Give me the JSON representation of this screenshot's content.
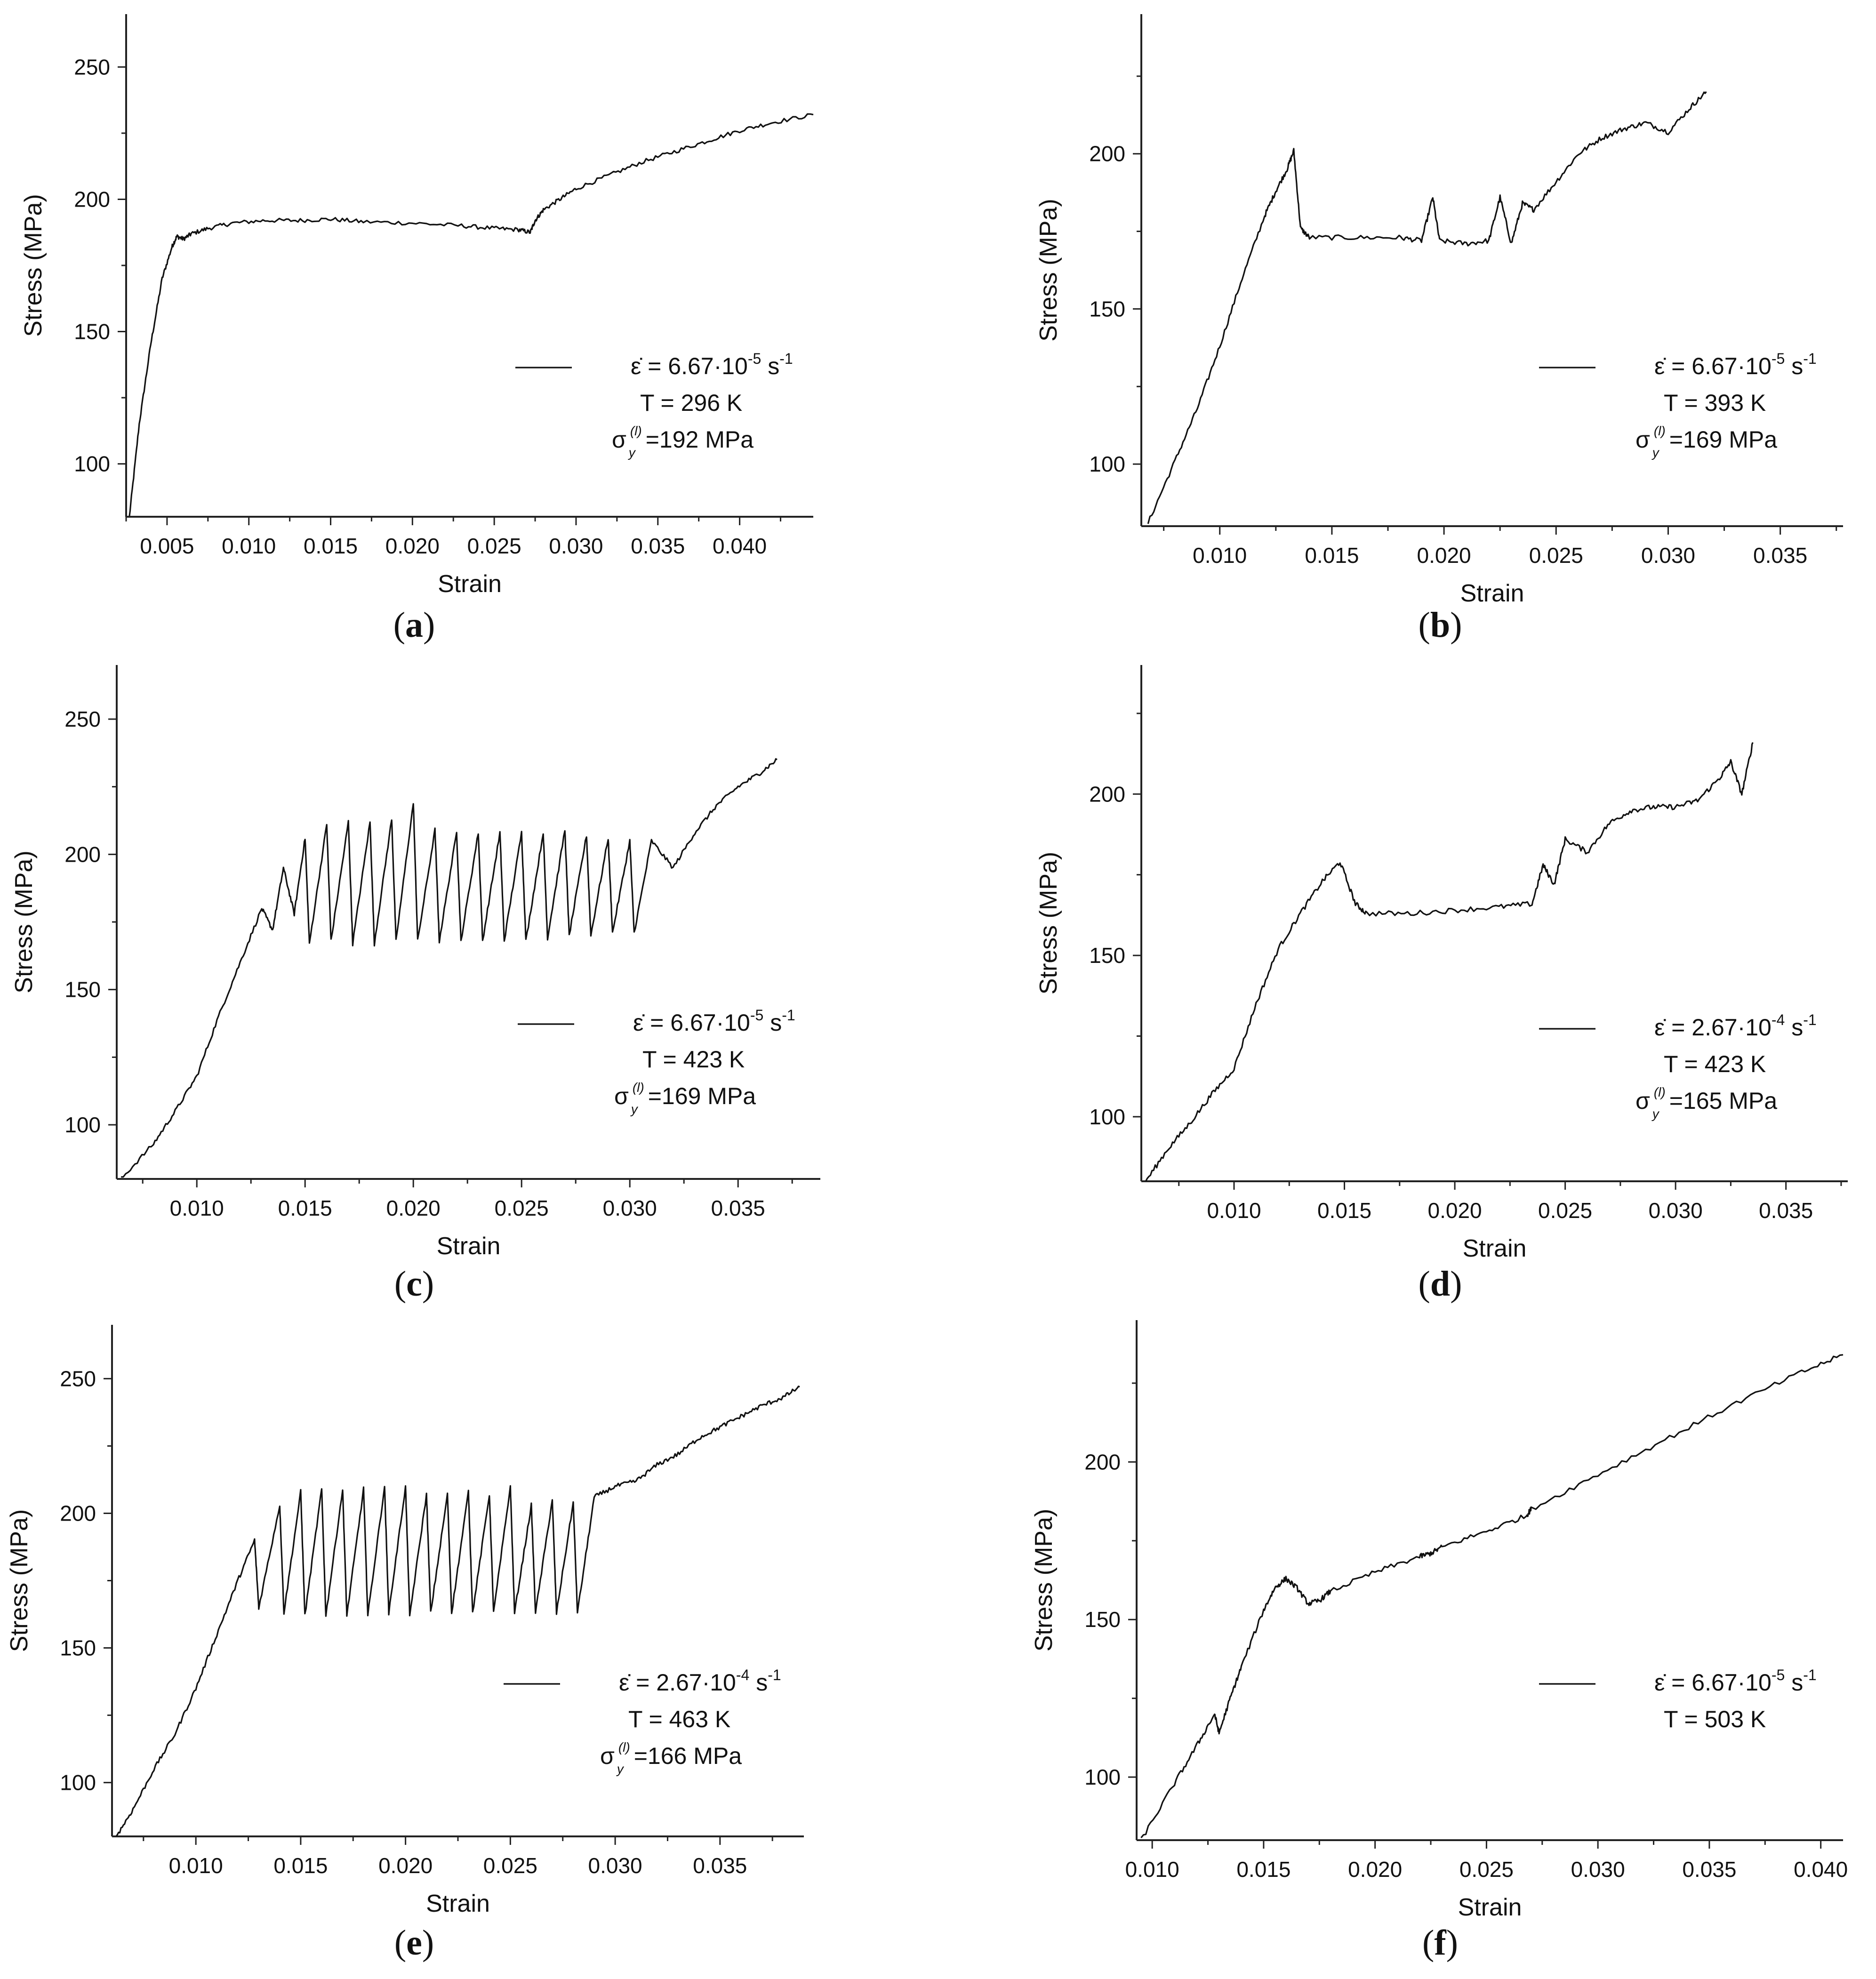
{
  "figure": {
    "panels": [
      {
        "id": "a",
        "caption_letter": "a",
        "legend": {
          "rate_prefix": "ε̇ = ",
          "rate": "6.67·10",
          "rate_exp": "-5",
          "rate_unit": " s",
          "rate_unit_exp": "-1",
          "temperature": "T = 296 K",
          "yield_stress": "=192 MPa"
        }
      },
      {
        "id": "b",
        "caption_letter": "b",
        "legend": {
          "rate_prefix": "ε̇ = ",
          "rate": "6.67·10",
          "rate_exp": "-5",
          "rate_unit": " s",
          "rate_unit_exp": "-1",
          "temperature": "T = 393 K",
          "yield_stress": "=169 MPa"
        }
      },
      {
        "id": "c",
        "caption_letter": "c",
        "legend": {
          "rate_prefix": "ε̇ = ",
          "rate": "6.67·10",
          "rate_exp": "-5",
          "rate_unit": " s",
          "rate_unit_exp": "-1",
          "temperature": "T = 423 K",
          "yield_stress": "=169 MPa"
        }
      },
      {
        "id": "d",
        "caption_letter": "d",
        "legend": {
          "rate_prefix": "ε̇ = ",
          "rate": "2.67·10",
          "rate_exp": "-4",
          "rate_unit": " s",
          "rate_unit_exp": "-1",
          "temperature": "T = 423 K",
          "yield_stress": "=165 MPa"
        }
      },
      {
        "id": "e",
        "caption_letter": "e",
        "legend": {
          "rate_prefix": "ε̇ = ",
          "rate": "2.67·10",
          "rate_exp": "-4",
          "rate_unit": " s",
          "rate_unit_exp": "-1",
          "temperature": "T = 463 K",
          "yield_stress": "=166 MPa"
        }
      },
      {
        "id": "f",
        "caption_letter": "f",
        "legend": {
          "rate_prefix": "ε̇ = ",
          "rate": "6.67·10",
          "rate_exp": "-5",
          "rate_unit": " s",
          "rate_unit_exp": "-1",
          "temperature": "T = 503 K",
          "yield_stress": null
        }
      }
    ],
    "sigma_symbol": "σ",
    "sigma_sup": "(l)",
    "sigma_sub": "y"
  },
  "chart_data": [
    {
      "type": "line",
      "panel": "a",
      "xlabel": "Strain",
      "ylabel": "Stress (MPa)",
      "xlim": [
        0.0025,
        0.0445
      ],
      "ylim": [
        80,
        270
      ],
      "xticks": [
        0.005,
        0.01,
        0.015,
        0.02,
        0.025,
        0.03,
        0.035,
        0.04
      ],
      "xtick_labels": [
        "0.005",
        "0.010",
        "0.015",
        "0.020",
        "0.025",
        "0.030",
        "0.035",
        "0.040"
      ],
      "yticks": [
        100,
        150,
        200,
        250
      ],
      "ytick_labels": [
        "100",
        "150",
        "200",
        "250"
      ],
      "series": [
        {
          "name": "ε̇ = 6.67·10⁻⁵ s⁻¹, T = 296 K",
          "x": [
            0.0027,
            0.0033,
            0.004,
            0.0047,
            0.0053,
            0.0056,
            0.006,
            0.0065,
            0.0075,
            0.009,
            0.011,
            0.013,
            0.015,
            0.017,
            0.02,
            0.023,
            0.025,
            0.0265,
            0.0272,
            0.0275,
            0.028,
            0.029,
            0.03,
            0.032,
            0.034,
            0.036,
            0.038,
            0.04,
            0.042,
            0.0445
          ],
          "y": [
            80,
            115,
            145,
            170,
            182,
            186,
            185,
            187,
            189,
            191,
            192,
            192,
            192.5,
            191.5,
            191,
            190,
            189,
            188.5,
            187.5,
            192,
            196,
            200,
            204,
            209,
            214,
            218,
            222,
            226,
            229,
            232
          ]
        }
      ]
    },
    {
      "type": "line",
      "panel": "b",
      "xlabel": "Strain",
      "ylabel": "Stress (MPa)",
      "xlim": [
        0.0065,
        0.0378
      ],
      "ylim": [
        80,
        245
      ],
      "xticks": [
        0.01,
        0.015,
        0.02,
        0.025,
        0.03,
        0.035
      ],
      "xtick_labels": [
        "0.010",
        "0.015",
        "0.020",
        "0.025",
        "0.030",
        "0.035"
      ],
      "yticks": [
        100,
        150,
        200
      ],
      "ytick_labels": [
        "100",
        "150",
        "200"
      ],
      "series": [
        {
          "name": "ε̇ = 6.67·10⁻⁵ s⁻¹, T = 393 K",
          "x": [
            0.0068,
            0.008,
            0.009,
            0.01,
            0.011,
            0.012,
            0.0125,
            0.013,
            0.0133,
            0.0136,
            0.014,
            0.016,
            0.018,
            0.019,
            0.0195,
            0.0198,
            0.021,
            0.022,
            0.0225,
            0.023,
            0.0235,
            0.024,
            0.025,
            0.026,
            0.027,
            0.028,
            0.029,
            0.03,
            0.031,
            0.0317
          ],
          "y": [
            81,
            101,
            118,
            138,
            160,
            180,
            188,
            195,
            201,
            176,
            173,
            173,
            173,
            172,
            186,
            172,
            171,
            172,
            186,
            171,
            184,
            182,
            191,
            200,
            205,
            208,
            210,
            207,
            215,
            220
          ]
        }
      ]
    },
    {
      "type": "line",
      "panel": "c",
      "xlabel": "Strain",
      "ylabel": "Stress (MPa)",
      "xlim": [
        0.0063,
        0.0388
      ],
      "ylim": [
        80,
        270
      ],
      "xticks": [
        0.01,
        0.015,
        0.02,
        0.025,
        0.03,
        0.035
      ],
      "xtick_labels": [
        "0.010",
        "0.015",
        "0.020",
        "0.025",
        "0.030",
        "0.035"
      ],
      "yticks": [
        100,
        150,
        200,
        250
      ],
      "ytick_labels": [
        "100",
        "150",
        "200",
        "250"
      ],
      "series": [
        {
          "name": "ε̇ = 6.67·10⁻⁵ s⁻¹, T = 423 K",
          "x": [
            0.0065,
            0.008,
            0.009,
            0.01,
            0.011,
            0.012,
            0.013,
            0.0135,
            0.014,
            0.0145,
            0.015,
            0.0152,
            0.016,
            0.0162,
            0.017,
            0.0172,
            0.018,
            0.0182,
            0.019,
            0.0192,
            0.02,
            0.0202,
            0.021,
            0.0212,
            0.022,
            0.0222,
            0.023,
            0.0232,
            0.024,
            0.0242,
            0.025,
            0.0252,
            0.026,
            0.0262,
            0.027,
            0.0272,
            0.028,
            0.0282,
            0.029,
            0.0292,
            0.03,
            0.0302,
            0.031,
            0.032,
            0.033,
            0.034,
            0.035,
            0.036,
            0.0368
          ],
          "y": [
            80,
            93,
            105,
            118,
            140,
            160,
            180,
            172,
            195,
            178,
            206,
            167,
            211,
            168,
            212,
            167,
            212,
            167,
            213,
            168,
            219,
            168,
            209,
            168,
            208,
            168,
            208,
            168,
            208,
            168,
            208,
            168,
            208,
            169,
            209,
            170,
            207,
            170,
            206,
            171,
            205,
            171,
            205,
            195,
            208,
            218,
            225,
            230,
            235
          ]
        }
      ]
    },
    {
      "type": "line",
      "panel": "d",
      "xlabel": "Strain",
      "ylabel": "Stress (MPa)",
      "xlim": [
        0.0058,
        0.0378
      ],
      "ylim": [
        80,
        240
      ],
      "xticks": [
        0.01,
        0.015,
        0.02,
        0.025,
        0.03,
        0.035
      ],
      "xtick_labels": [
        "0.010",
        "0.015",
        "0.020",
        "0.025",
        "0.030",
        "0.035"
      ],
      "yticks": [
        100,
        150,
        200
      ],
      "ytick_labels": [
        "100",
        "150",
        "200"
      ],
      "series": [
        {
          "name": "ε̇ = 2.67·10⁻⁴ s⁻¹, T = 423 K",
          "x": [
            0.006,
            0.007,
            0.008,
            0.009,
            0.01,
            0.011,
            0.012,
            0.013,
            0.014,
            0.0148,
            0.0155,
            0.016,
            0.018,
            0.02,
            0.022,
            0.0235,
            0.024,
            0.0245,
            0.025,
            0.026,
            0.027,
            0.028,
            0.029,
            0.03,
            0.031,
            0.032,
            0.0325,
            0.033,
            0.0335
          ],
          "y": [
            80,
            90,
            98,
            107,
            115,
            135,
            152,
            163,
            173,
            179,
            166,
            163,
            163,
            164,
            165,
            166,
            178,
            172,
            186,
            182,
            191,
            195,
            196,
            196,
            198,
            205,
            210,
            200,
            216
          ]
        }
      ]
    },
    {
      "type": "line",
      "panel": "e",
      "xlabel": "Strain",
      "ylabel": "Stress (MPa)",
      "xlim": [
        0.006,
        0.039
      ],
      "ylim": [
        80,
        270
      ],
      "xticks": [
        0.01,
        0.015,
        0.02,
        0.025,
        0.03,
        0.035
      ],
      "xtick_labels": [
        "0.010",
        "0.015",
        "0.020",
        "0.025",
        "0.030",
        "0.035"
      ],
      "yticks": [
        100,
        150,
        200,
        250
      ],
      "ytick_labels": [
        "100",
        "150",
        "200",
        "250"
      ],
      "series": [
        {
          "name": "ε̇ = 2.67·10⁻⁴ s⁻¹, T = 463 K",
          "x": [
            0.0062,
            0.007,
            0.008,
            0.009,
            0.01,
            0.011,
            0.012,
            0.0128,
            0.013,
            0.014,
            0.0142,
            0.015,
            0.0152,
            0.016,
            0.0162,
            0.017,
            0.0172,
            0.018,
            0.0182,
            0.019,
            0.0192,
            0.02,
            0.0202,
            0.021,
            0.0212,
            0.022,
            0.0222,
            0.023,
            0.0232,
            0.024,
            0.0242,
            0.025,
            0.0252,
            0.026,
            0.0262,
            0.027,
            0.0272,
            0.028,
            0.0282,
            0.029,
            0.03,
            0.031,
            0.032,
            0.033,
            0.034,
            0.035,
            0.036,
            0.037,
            0.038,
            0.0388
          ],
          "y": [
            80,
            90,
            105,
            118,
            135,
            155,
            175,
            190,
            165,
            203,
            163,
            208,
            162,
            209,
            162,
            209,
            162,
            209,
            162,
            210,
            163,
            210,
            162,
            207,
            163,
            207,
            163,
            208,
            163,
            207,
            163,
            210,
            163,
            203,
            163,
            205,
            163,
            204,
            163,
            206,
            210,
            212,
            218,
            222,
            228,
            232,
            236,
            240,
            243,
            247
          ]
        }
      ]
    },
    {
      "type": "line",
      "panel": "f",
      "xlabel": "Strain",
      "ylabel": "Stress (MPa)",
      "xlim": [
        0.0093,
        0.041
      ],
      "ylim": [
        80,
        245
      ],
      "xticks": [
        0.01,
        0.015,
        0.02,
        0.025,
        0.03,
        0.035,
        0.04
      ],
      "xtick_labels": [
        "0.010",
        "0.015",
        "0.020",
        "0.025",
        "0.030",
        "0.035",
        "0.040"
      ],
      "yticks": [
        100,
        150,
        200
      ],
      "ytick_labels": [
        "100",
        "150",
        "200"
      ],
      "series": [
        {
          "name": "ε̇ = 6.67·10⁻⁵ s⁻¹, T = 503 K",
          "x": [
            0.0095,
            0.011,
            0.012,
            0.0128,
            0.013,
            0.0135,
            0.014,
            0.015,
            0.0155,
            0.016,
            0.0165,
            0.017,
            0.0175,
            0.018,
            0.02,
            0.022,
            0.0225,
            0.023,
            0.025,
            0.0268,
            0.027,
            0.03,
            0.033,
            0.036,
            0.039,
            0.041
          ],
          "y": [
            80,
            98,
            110,
            120,
            114,
            125,
            135,
            153,
            160,
            163,
            160,
            155,
            156,
            159,
            165,
            170,
            171,
            173,
            178,
            183,
            185,
            196,
            207,
            218,
            228,
            234
          ]
        }
      ]
    }
  ]
}
